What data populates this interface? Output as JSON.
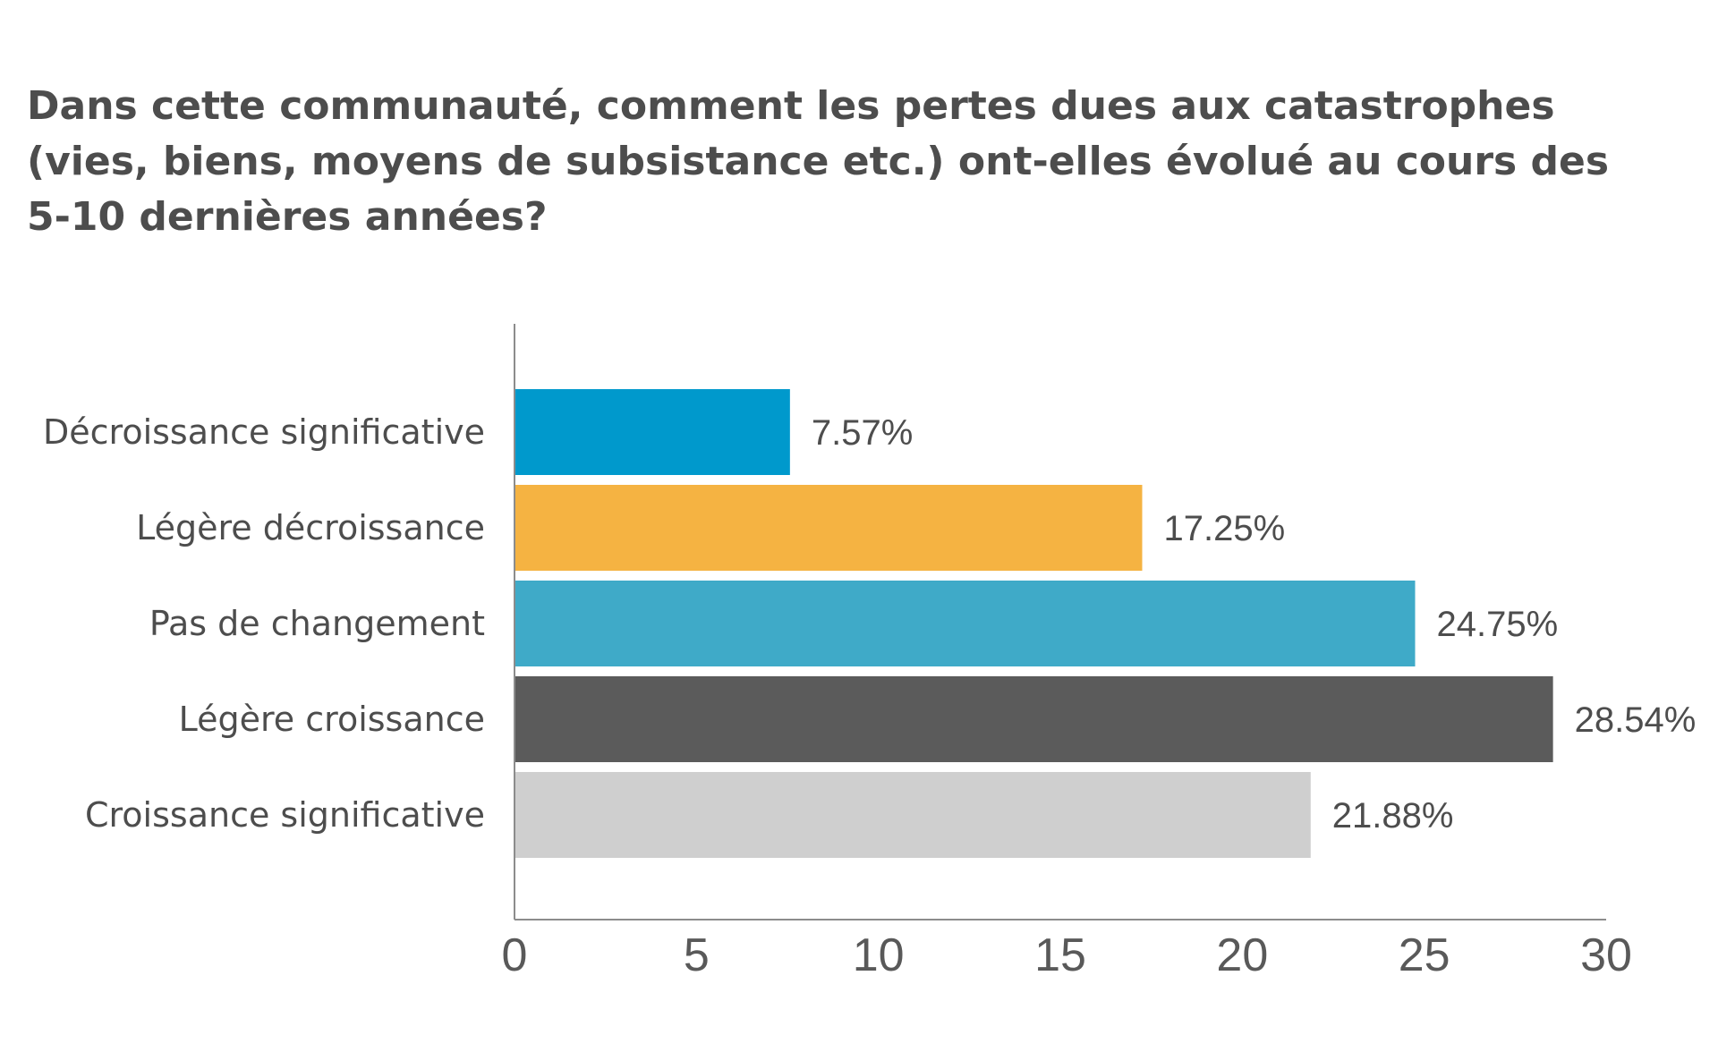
{
  "chart_data": {
    "type": "bar",
    "orientation": "horizontal",
    "title": "Dans cette communauté, comment les pertes dues aux catastrophes (vies, biens, moyens de subsistance etc.) ont-elles évolué au cours des 5-10 dernières années?",
    "categories": [
      "Décroissance significative",
      "Légère décroissance",
      "Pas de changement",
      "Légère croissance",
      "Croissance significative"
    ],
    "values": [
      7.57,
      17.25,
      24.75,
      28.54,
      21.88
    ],
    "value_labels": [
      "7.57%",
      "17.25%",
      "24.75%",
      "28.54%",
      "21.88%"
    ],
    "colors": [
      "#0099cc",
      "#f5b342",
      "#3faac8",
      "#5b5b5b",
      "#cfcfcf"
    ],
    "xlim": [
      0,
      30
    ],
    "xticks": [
      0,
      5,
      10,
      15,
      20,
      25,
      30
    ],
    "xlabel": "",
    "ylabel": "",
    "grid": false,
    "legend": "none"
  }
}
